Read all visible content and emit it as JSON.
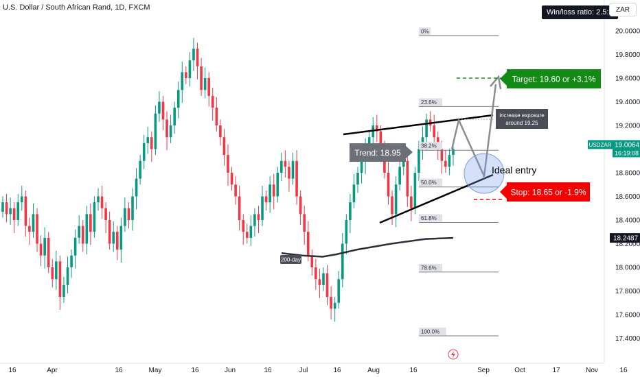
{
  "header": {
    "title": "U.S. Dollar / South African Rand, 1D, FXCM",
    "win_loss": "Win/loss ratio: 2.5:1",
    "currency": "ZAR"
  },
  "price_labels": {
    "symbol": "USDZAR",
    "last_price": "19.0064",
    "countdown": "16:19:08",
    "ma_price": "18.2487"
  },
  "annotations": {
    "target": "Target: 19.60 or +3.1%",
    "stop": "Stop: 18.65 or -1.9%",
    "trend": "Trend: 18.95",
    "ideal_entry": "Ideal entry",
    "increase_exposure_line1": "increase exposure",
    "increase_exposure_line2": "around 19.25",
    "ma_label": "200-day"
  },
  "colors": {
    "up": "#089981",
    "down": "#f23645",
    "target": "#138a13",
    "stop": "#f20000",
    "trend_box": "#6b6f78",
    "ma": "#2a2e39",
    "fib": "#787b86"
  },
  "chart_data": {
    "type": "candlestick",
    "title": "U.S. Dollar / South African Rand, 1D, FXCM",
    "ylim": [
      17.3,
      20.1
    ],
    "y_ticks": [
      "20.0000",
      "19.8000",
      "19.6000",
      "19.4000",
      "19.2000",
      "19.0000",
      "18.8000",
      "18.6000",
      "18.4000",
      "18.2000",
      "18.0000",
      "17.8000",
      "17.6000",
      "17.4000"
    ],
    "x_ticks": [
      "16",
      "Apr",
      "16",
      "May",
      "16",
      "Jun",
      "16",
      "Jul",
      "16",
      "Aug",
      "16",
      "Sep",
      "Oct",
      "17",
      "Nov",
      "16"
    ],
    "closes": [
      18.55,
      18.45,
      18.5,
      18.4,
      18.55,
      18.6,
      18.35,
      18.3,
      18.45,
      18.2,
      18.1,
      18.25,
      18.0,
      17.9,
      18.05,
      17.75,
      17.85,
      18.0,
      18.1,
      18.25,
      18.35,
      18.2,
      18.45,
      18.3,
      18.55,
      18.6,
      18.5,
      18.4,
      18.2,
      18.3,
      18.15,
      18.35,
      18.5,
      18.4,
      18.6,
      18.75,
      18.9,
      19.05,
      19.1,
      19.0,
      19.3,
      19.4,
      19.25,
      19.1,
      19.2,
      19.35,
      19.5,
      19.65,
      19.6,
      19.75,
      19.85,
      19.7,
      19.5,
      19.6,
      19.45,
      19.35,
      19.2,
      19.1,
      18.95,
      18.8,
      18.7,
      18.6,
      18.4,
      18.3,
      18.25,
      18.35,
      18.45,
      18.4,
      18.6,
      18.55,
      18.7,
      18.6,
      18.8,
      18.9,
      18.85,
      18.75,
      18.9,
      18.6,
      18.45,
      18.3,
      18.1,
      18.0,
      17.9,
      17.85,
      17.95,
      17.75,
      17.65,
      17.7,
      17.9,
      18.2,
      18.4,
      18.55,
      18.7,
      18.8,
      18.9,
      19.0,
      19.1,
      19.2,
      19.15,
      19.0,
      18.8,
      18.6,
      18.45,
      18.7,
      18.85,
      18.9,
      18.6,
      18.5,
      18.8,
      19.0,
      19.1,
      19.25,
      19.2,
      19.1,
      19.0,
      18.9,
      18.85,
      18.95,
      19.0
    ],
    "moving_average_200_day": [
      18.12,
      18.1,
      18.09,
      18.11,
      18.15,
      18.2,
      18.24,
      18.2487
    ],
    "fibonacci_retracements": [
      {
        "label": "0%",
        "value": 19.96
      },
      {
        "label": "23.6%",
        "value": 19.36
      },
      {
        "label": "38.2%",
        "value": 18.99
      },
      {
        "label": "50.0%",
        "value": 18.68
      },
      {
        "label": "61.8%",
        "value": 18.38
      },
      {
        "label": "78.6%",
        "value": 17.96
      },
      {
        "label": "100.0%",
        "value": 17.42
      }
    ],
    "levels": {
      "last_price": 19.0064,
      "target": 19.6,
      "stop": 18.65,
      "trend": 18.95
    }
  }
}
